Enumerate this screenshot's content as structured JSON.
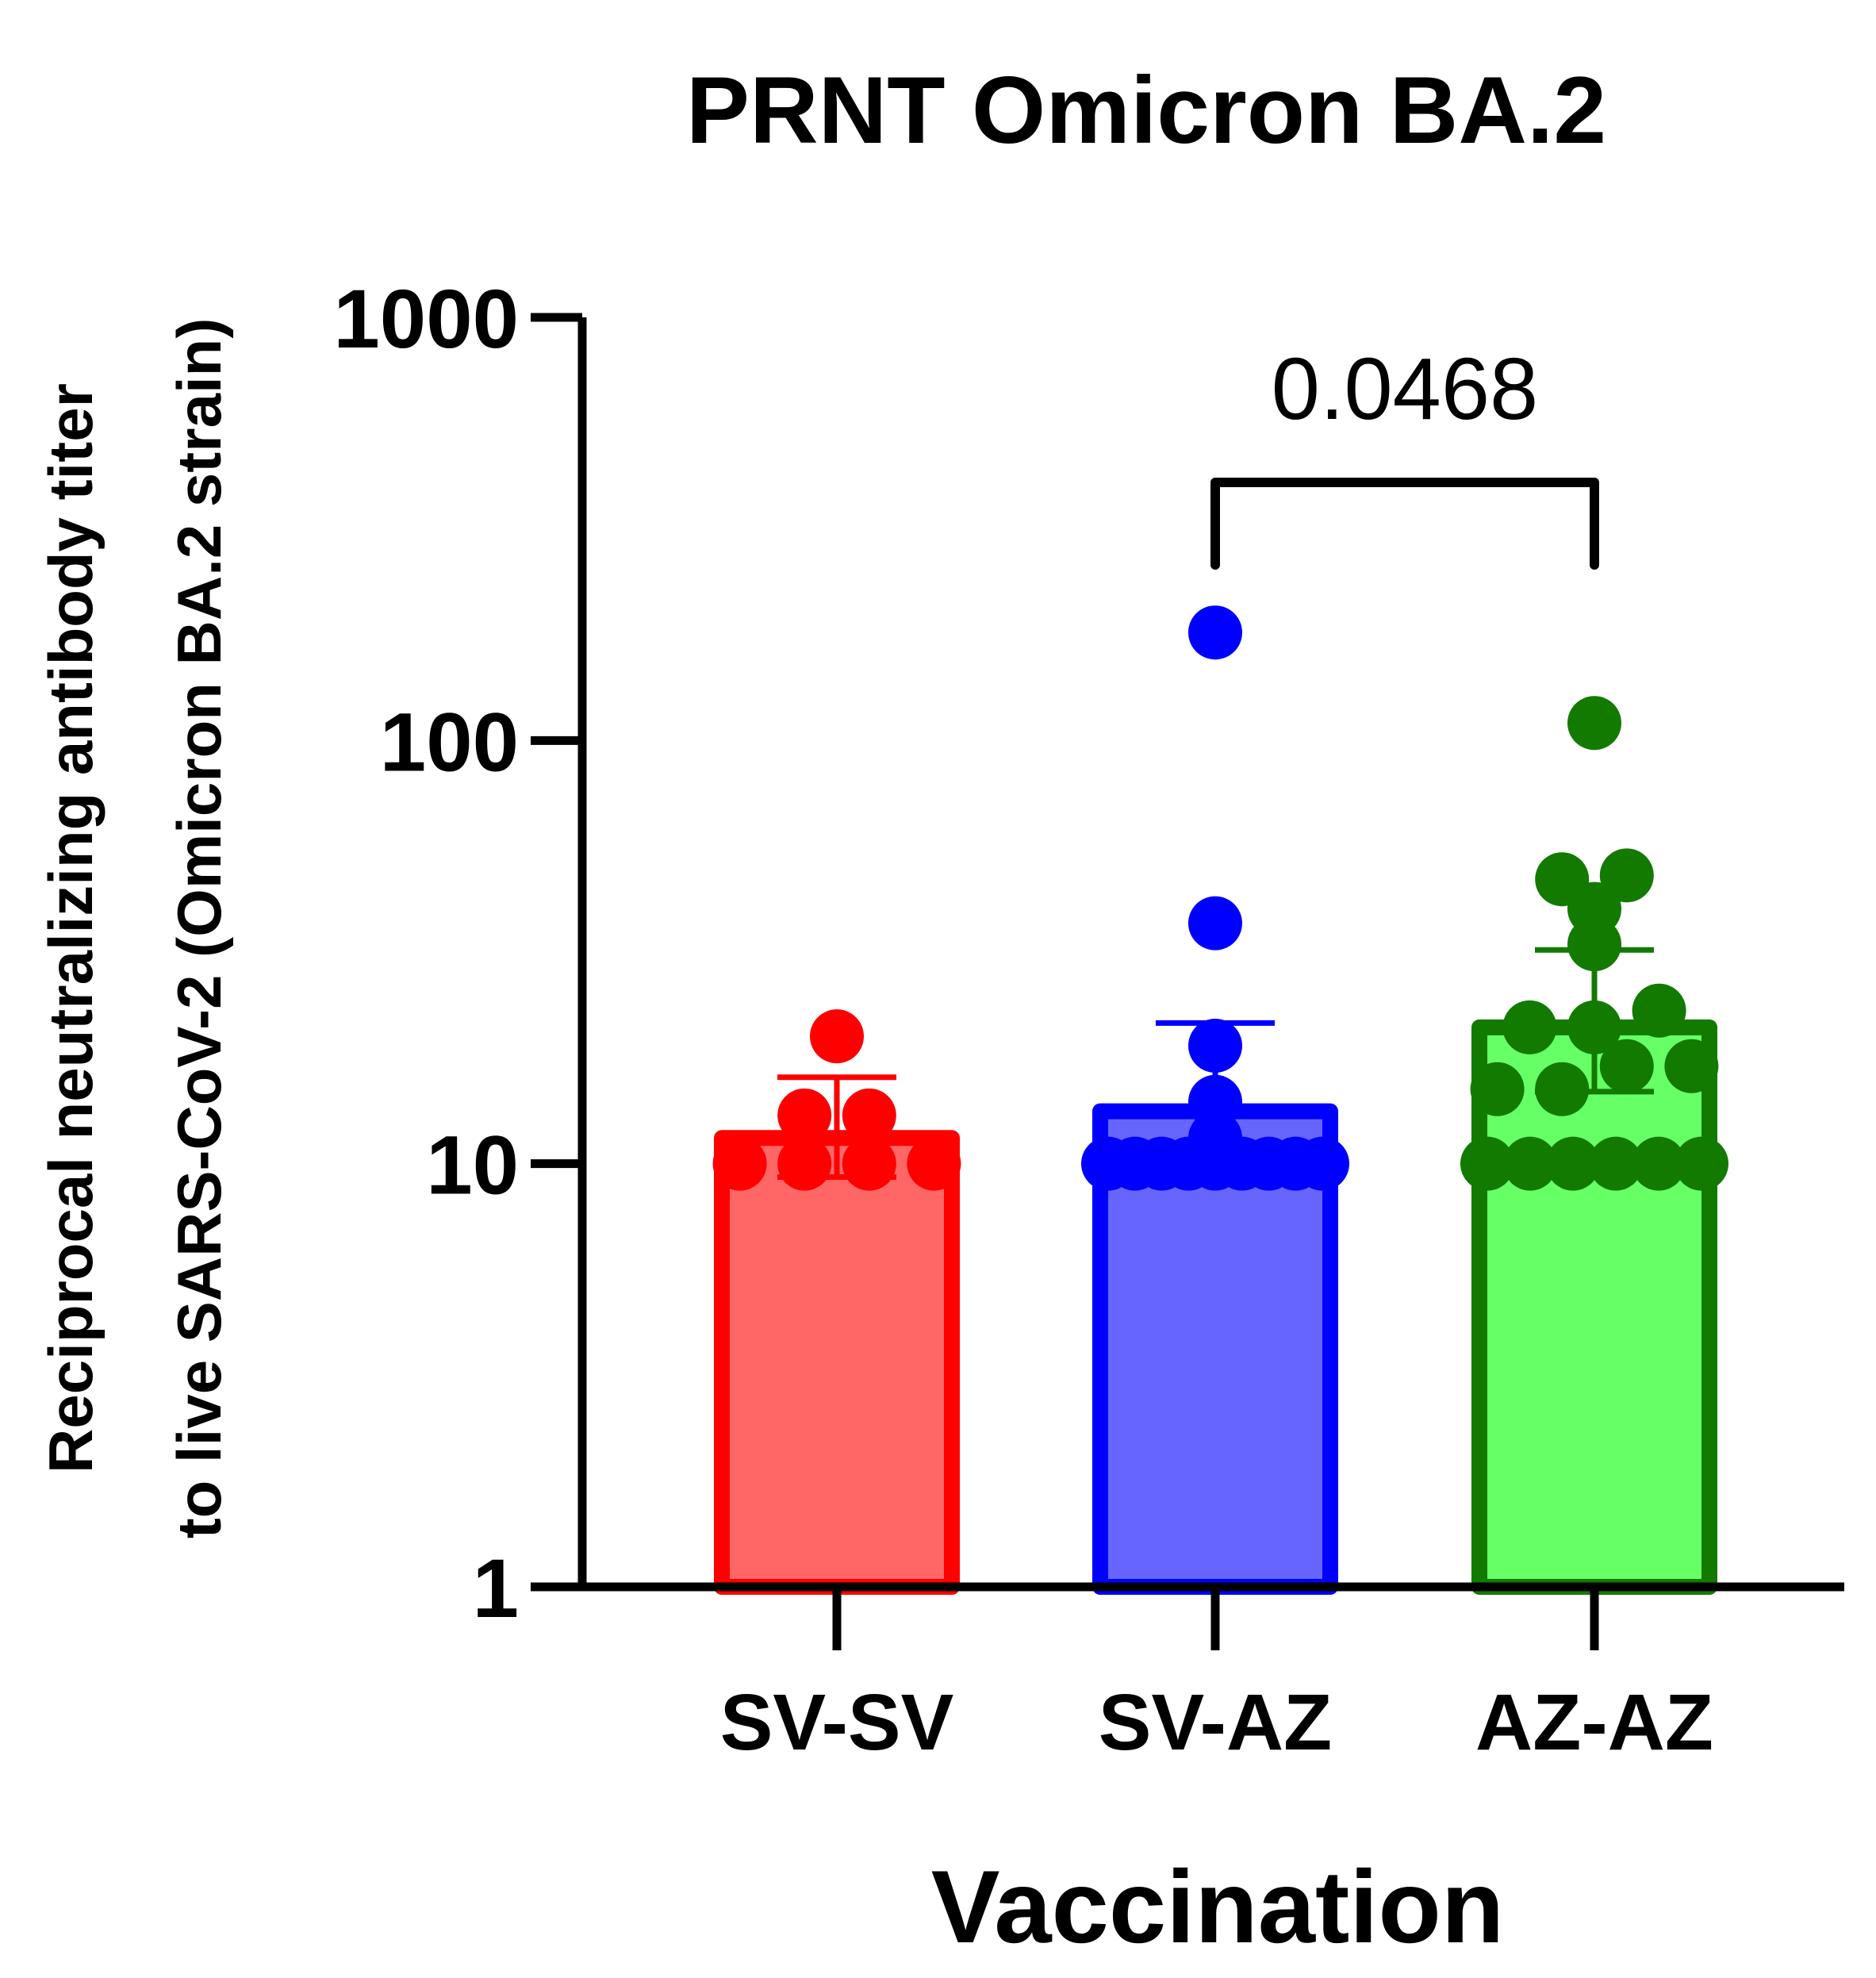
{
  "chart_data": {
    "type": "bar",
    "title": "PRNT Omicron BA.2",
    "xlabel": "Vaccination",
    "ylabel_line1": "Reciprocal neutralizing antibody titer",
    "ylabel_line2": "to live SARS-CoV-2 (Omicron BA.2 strain)",
    "yscale": "log10",
    "ylim": [
      1,
      1000
    ],
    "yticks": [
      {
        "value": 1,
        "label": "1"
      },
      {
        "value": 10,
        "label": "10"
      },
      {
        "value": 100,
        "label": "100"
      },
      {
        "value": 1000,
        "label": "1000"
      }
    ],
    "categories": [
      "SV-SV",
      "SV-AZ",
      "AZ-AZ"
    ],
    "series": [
      {
        "name": "SV-SV",
        "mean": 11.5,
        "error_low": 9.3,
        "error_high": 16,
        "stroke": "#ff0000",
        "fill": "#ff6666",
        "points": [
          10,
          10,
          10,
          10,
          13,
          13,
          20
        ]
      },
      {
        "name": "SV-AZ",
        "mean": 13.3,
        "error_low": 10,
        "error_high": 21.5,
        "stroke": "#0000ff",
        "fill": "#6666ff",
        "points": [
          10,
          10,
          10,
          10,
          10,
          10,
          10,
          10,
          10,
          11.5,
          14,
          19,
          37,
          180
        ]
      },
      {
        "name": "AZ-AZ",
        "mean": 21,
        "error_low": 14.8,
        "error_high": 32,
        "stroke": "#137a00",
        "fill": "#66ff66",
        "points": [
          10,
          10,
          10,
          10,
          10,
          10,
          15,
          15,
          17,
          17,
          21,
          21,
          23,
          33,
          40,
          47,
          48,
          110
        ]
      }
    ],
    "annotation": {
      "text": "0.0468",
      "from": "SV-AZ",
      "to": "AZ-AZ"
    }
  }
}
